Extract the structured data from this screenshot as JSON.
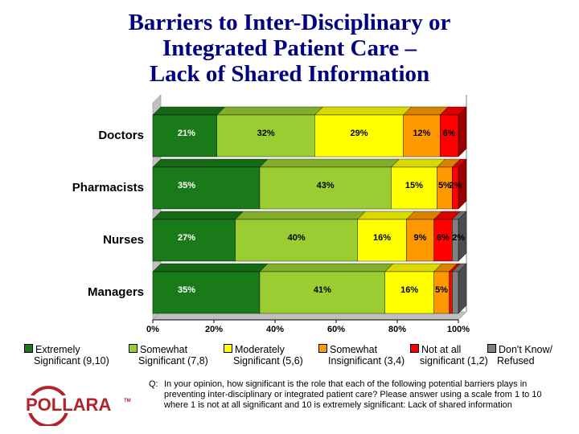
{
  "title_lines": [
    "Barriers to Inter-Disciplinary or",
    "Integrated Patient Care –",
    "Lack of Shared Information"
  ],
  "chart_data": {
    "type": "bar",
    "orientation": "horizontal",
    "stacked": true,
    "percent_stacked": true,
    "categories": [
      "Doctors",
      "Pharmacists",
      "Nurses",
      "Managers"
    ],
    "x_ticks": [
      "0%",
      "20%",
      "40%",
      "60%",
      "80%",
      "100%"
    ],
    "xlim": [
      0,
      100
    ],
    "legend_position": "bottom",
    "series": [
      {
        "name": "Extremely Significant (9,10)",
        "legend_lines": [
          "Extremely",
          "Significant (9,10)"
        ],
        "color": "#1a7a1a",
        "values": [
          21,
          35,
          27,
          35
        ],
        "labels": [
          "21%",
          "35%",
          "27%",
          "35%"
        ]
      },
      {
        "name": "Somewhat Significant (7,8)",
        "legend_lines": [
          "Somewhat",
          "Significant (7,8)"
        ],
        "color": "#9acd32",
        "values": [
          32,
          43,
          40,
          41
        ],
        "labels": [
          "32%",
          "43%",
          "40%",
          "41%"
        ]
      },
      {
        "name": "Moderately Significant (5,6)",
        "legend_lines": [
          "Moderately",
          "Significant (5,6)"
        ],
        "color": "#ffff00",
        "values": [
          29,
          15,
          16,
          16
        ],
        "labels": [
          "29%",
          "15%",
          "16%",
          "16%"
        ]
      },
      {
        "name": "Somewhat Insignificant (3,4)",
        "legend_lines": [
          "Somewhat",
          "Insignificant (3,4)"
        ],
        "color": "#ff9900",
        "values": [
          12,
          5,
          9,
          5
        ],
        "labels": [
          "12%",
          "5%",
          "9%",
          "5%"
        ]
      },
      {
        "name": "Not at all significant (1,2)",
        "legend_lines": [
          "Not at all",
          "significant (1,2)"
        ],
        "color": "#ff0000",
        "values": [
          6,
          2,
          6,
          1
        ],
        "labels": [
          "6%",
          "2%",
          "6%",
          ""
        ]
      },
      {
        "name": "Don't Know/ Refused",
        "legend_lines": [
          "Don't Know/",
          "Refused"
        ],
        "color": "#808080",
        "values": [
          0,
          0,
          2,
          2
        ],
        "labels": [
          "",
          "",
          "2%",
          ""
        ]
      }
    ]
  },
  "question": {
    "prefix": "Q:",
    "text": "In your opinion, how significant is the role that each of the following potential barriers plays in preventing inter-disciplinary or integrated patient care? Please answer using a scale from 1 to 10 where 1 is not at all significant and 10 is extremely significant: Lack of shared information"
  },
  "logo": {
    "text": "POLLARA",
    "tm": "TM"
  }
}
